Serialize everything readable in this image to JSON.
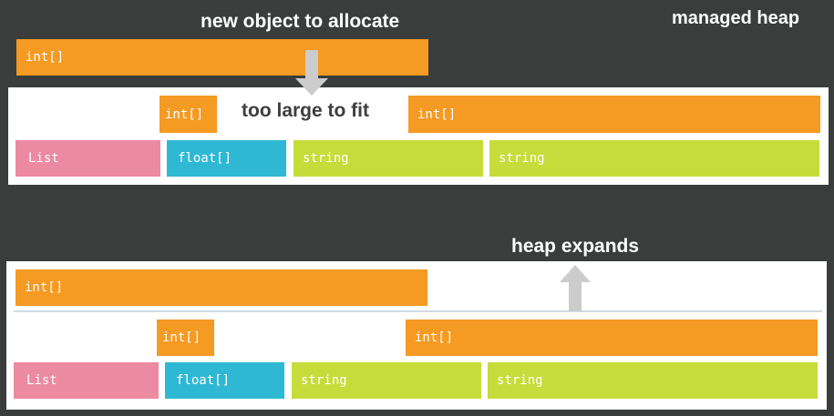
{
  "title": "managed heap",
  "top": {
    "caption": "new object to allocate",
    "new_object": "int[]",
    "note": "too large to fit",
    "row1": [
      "int[]",
      "int[]"
    ],
    "row2": [
      "List",
      "float[]",
      "string",
      "string"
    ]
  },
  "bottom": {
    "caption": "heap expands",
    "new_object": "int[]",
    "row1": [
      "int[]",
      "int[]"
    ],
    "row2": [
      "List",
      "float[]",
      "string",
      "string"
    ]
  },
  "colors": {
    "background": "#3a3d3c",
    "int_array": "#f59a23",
    "list": "#ec8aa1",
    "float_array": "#2fb8d3",
    "string": "#c6dc3a",
    "arrow": "#cccccc"
  }
}
